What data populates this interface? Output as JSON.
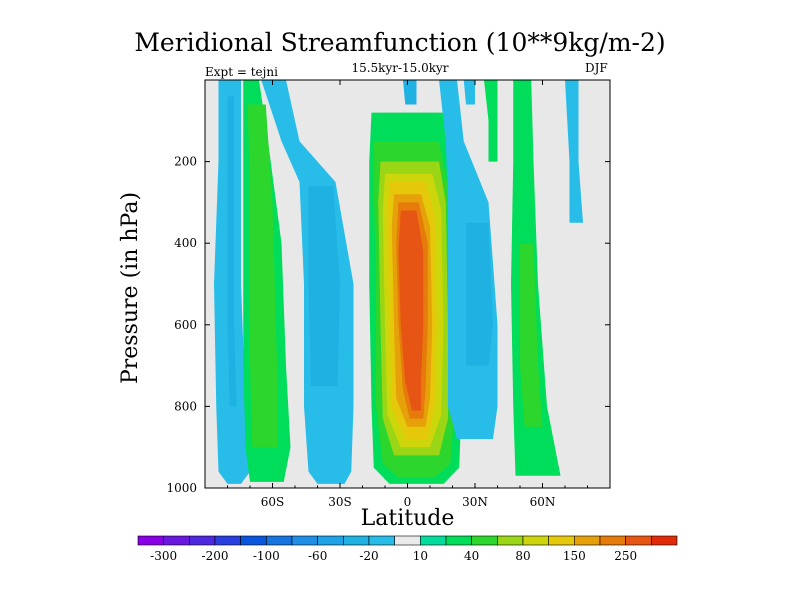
{
  "chart_data": {
    "type": "heatmap",
    "title": "Meridional Streamfunction (10**9kg/m-2)",
    "subtitle": "15.5kyr-15.0kyr",
    "expt_label": "Expt = tejni",
    "season": "DJF",
    "xlabel": "Latitude",
    "ylabel": "Pressure (in hPa)",
    "xlim": [
      -90,
      90
    ],
    "ylim": [
      1000,
      0
    ],
    "x_ticks": [
      {
        "value": -60,
        "label": "60S"
      },
      {
        "value": -30,
        "label": "30S"
      },
      {
        "value": 0,
        "label": "0"
      },
      {
        "value": 30,
        "label": "30N"
      },
      {
        "value": 60,
        "label": "60N"
      }
    ],
    "y_ticks": [
      {
        "value": 200,
        "label": "200"
      },
      {
        "value": 400,
        "label": "400"
      },
      {
        "value": 600,
        "label": "600"
      },
      {
        "value": 800,
        "label": "800"
      },
      {
        "value": 1000,
        "label": "1000"
      }
    ],
    "colorbar": {
      "levels": [
        -300,
        -250,
        -200,
        -150,
        -100,
        -80,
        -60,
        -40,
        -20,
        -10,
        10,
        20,
        40,
        60,
        80,
        100,
        150,
        200,
        250,
        300
      ],
      "tick_labels": [
        "-300",
        "-200",
        "-100",
        "-60",
        "-20",
        "10",
        "40",
        "80",
        "150",
        "250"
      ],
      "colors": [
        "#8a00e6",
        "#6a17e0",
        "#4d28e0",
        "#2a3fe0",
        "#0a55dd",
        "#1673e0",
        "#1e8ee6",
        "#1ea2e8",
        "#20b1e3",
        "#27bde8",
        "#eaeaea",
        "#00dd9e",
        "#00dd5a",
        "#2cd62c",
        "#9ad616",
        "#ccd60a",
        "#e6c80a",
        "#e6a00a",
        "#e67a0a",
        "#e65514",
        "#e02a0a"
      ],
      "background_color": "#e8e8e8"
    },
    "contour_regions": [
      {
        "level": -20,
        "description": "negative cell 60S-90S",
        "x": [
          -86,
          -78,
          -76,
          -84
        ],
        "y_top": 0,
        "y_bottom": 960
      },
      {
        "level": -20,
        "description": "negative cell 30S-50S",
        "x": [
          -42,
          -28,
          -24,
          -40
        ],
        "y_top": 0,
        "y_bottom": 985
      },
      {
        "level": 20,
        "description": "positive cell near 60S",
        "x": [
          -74,
          -55,
          -52,
          -70
        ],
        "y_top": 0,
        "y_bottom": 985
      },
      {
        "level": 250,
        "description": "tropical Hadley cell",
        "x": [
          -15,
          20
        ],
        "y_top": 60,
        "y_bottom": 990,
        "max_level": 250
      },
      {
        "level": -20,
        "description": "negative cell 20N-40N",
        "x": [
          15,
          45
        ],
        "y_top": 0,
        "y_bottom": 880
      },
      {
        "level": 20,
        "description": "positive cell 45N-65N",
        "x": [
          45,
          68
        ],
        "y_top": 0,
        "y_bottom": 970
      }
    ]
  }
}
